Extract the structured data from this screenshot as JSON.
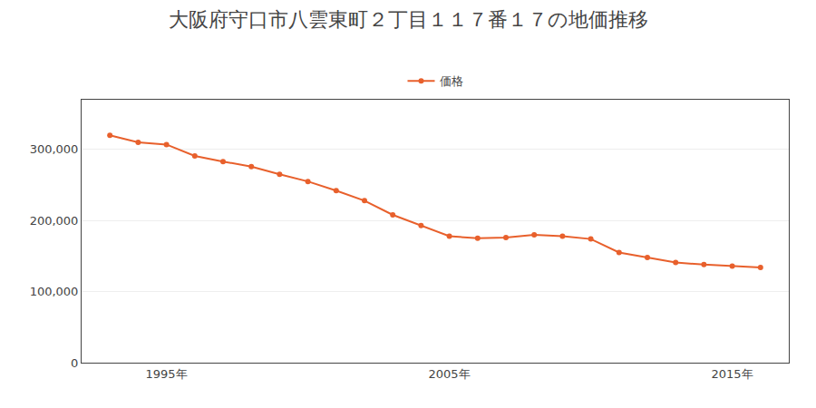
{
  "chart_data": {
    "type": "line",
    "title": "大阪府守口市八雲東町２丁目１１７番１７の地価推移",
    "x": [
      1993,
      1994,
      1995,
      1996,
      1997,
      1998,
      1999,
      2000,
      2001,
      2002,
      2003,
      2004,
      2005,
      2006,
      2007,
      2008,
      2009,
      2010,
      2011,
      2012,
      2013,
      2014,
      2015,
      2016
    ],
    "series": [
      {
        "name": "価格",
        "color": "#e8602c",
        "marker": "circle",
        "line_style": "solid",
        "values": [
          320000,
          310000,
          307000,
          291000,
          283000,
          276000,
          265000,
          255000,
          242000,
          228000,
          208000,
          193000,
          178000,
          175000,
          176000,
          180000,
          178000,
          174000,
          155000,
          148000,
          141000,
          138000,
          136000,
          134000
        ]
      }
    ],
    "xlim": [
      1992,
      2017
    ],
    "xticks": [
      {
        "value": 1995,
        "label": "1995年"
      },
      {
        "value": 2005,
        "label": "2005年"
      },
      {
        "value": 2015,
        "label": "2015年"
      }
    ],
    "ylim": [
      0,
      370000
    ],
    "yticks": [
      0,
      {
        "value": 100000,
        "label": "100,000"
      },
      {
        "value": 200000,
        "label": "200,000"
      },
      {
        "value": 300000,
        "label": "300,000"
      }
    ],
    "grid": "y",
    "legend": "top"
  }
}
